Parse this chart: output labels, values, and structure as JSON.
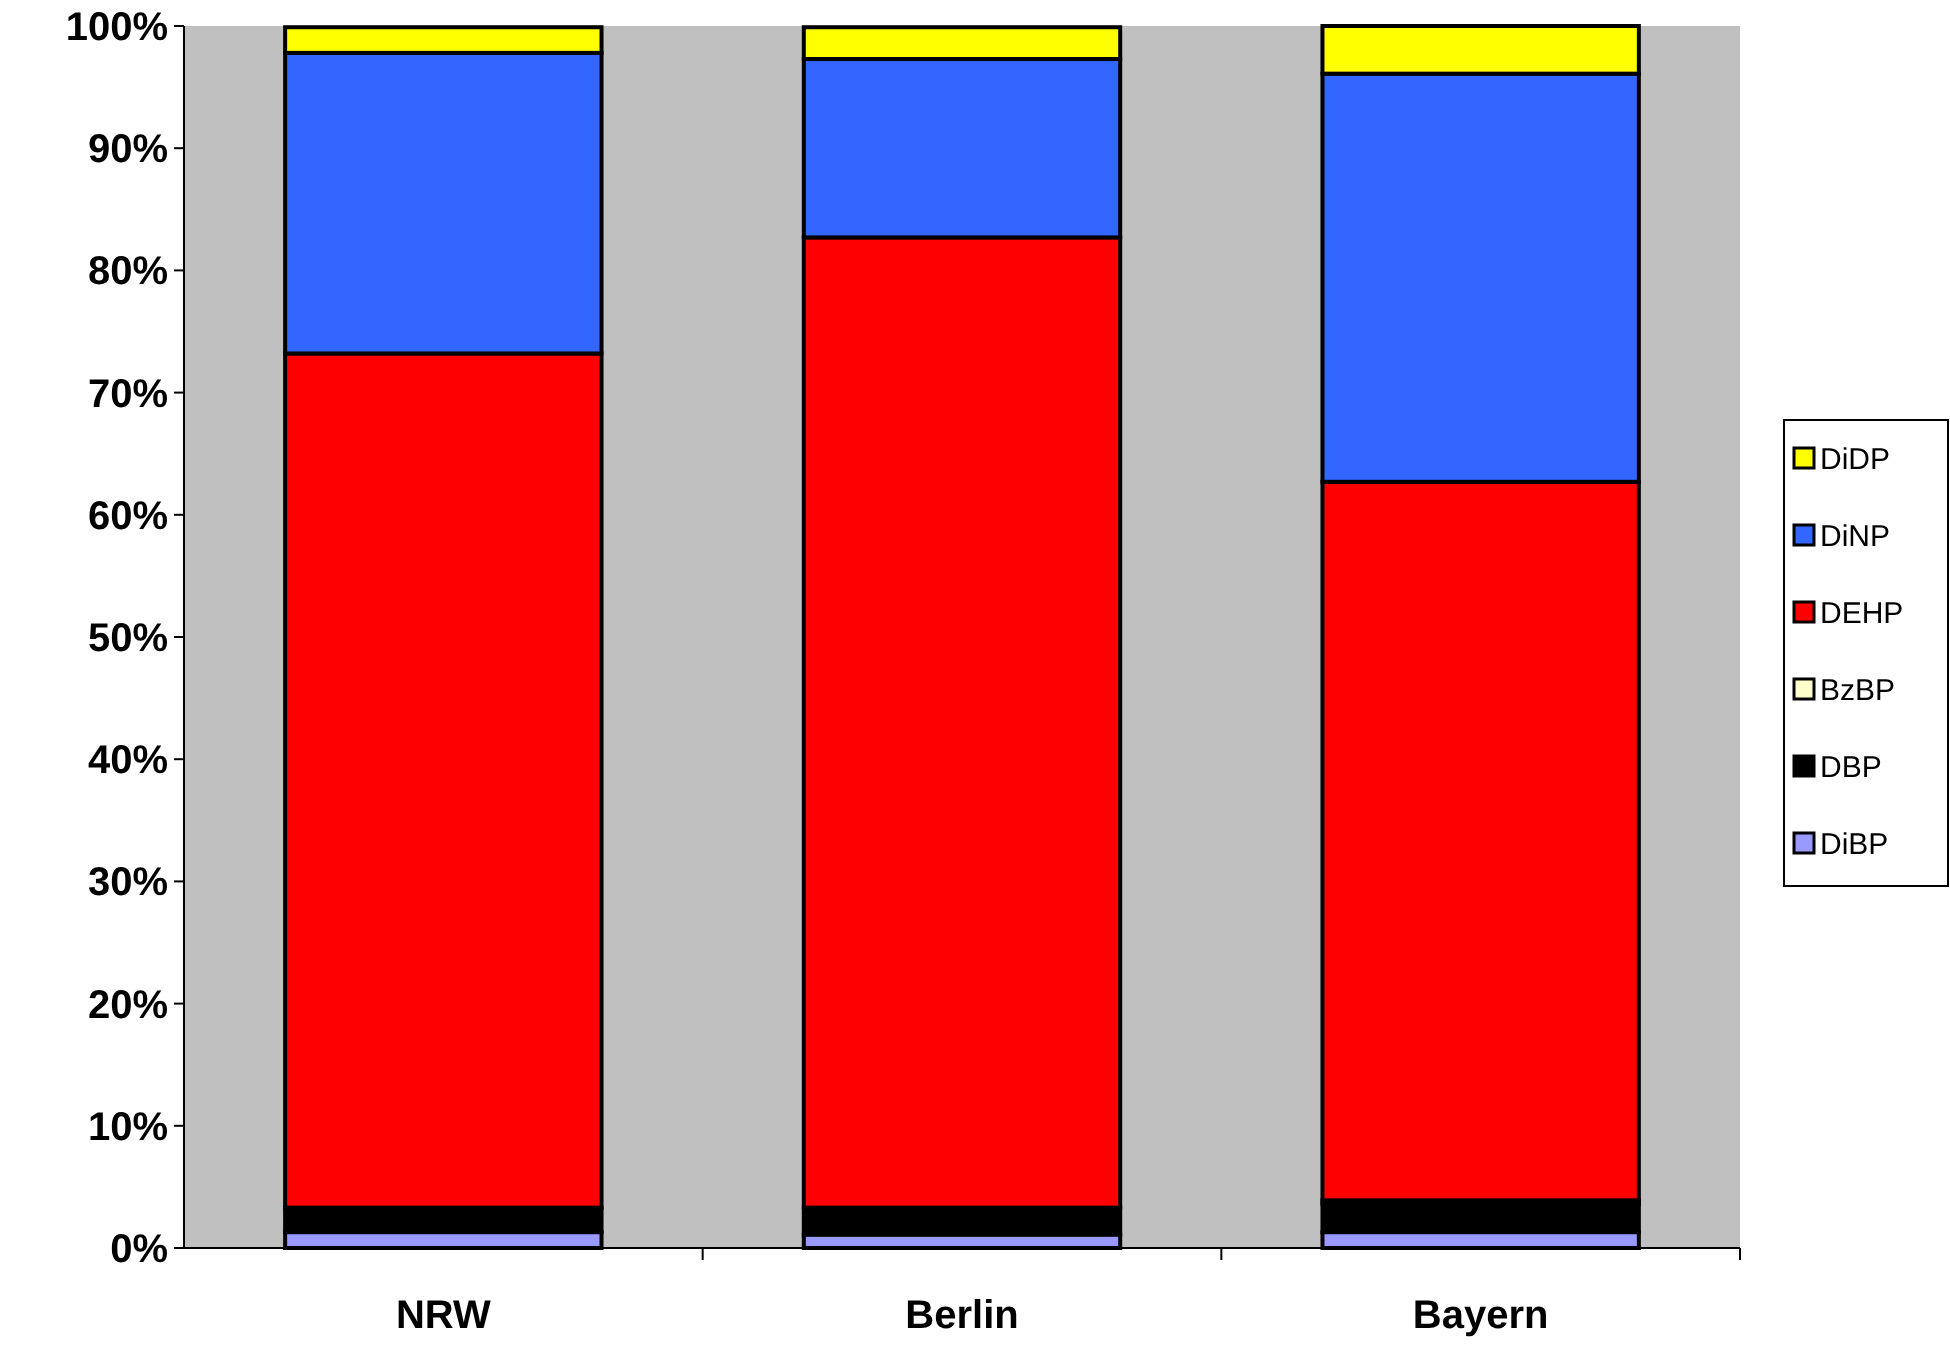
{
  "chart_data": {
    "type": "bar",
    "stacked": true,
    "categories": [
      "NRW",
      "Berlin",
      "Bayern"
    ],
    "series": [
      {
        "name": "DiBP",
        "color": "#9999ff",
        "values": [
          1.3,
          1.1,
          1.3
        ]
      },
      {
        "name": "DBP",
        "color": "#000000",
        "values": [
          2.0,
          2.2,
          2.3
        ]
      },
      {
        "name": "BzBP",
        "color": "#ffffcc",
        "values": [
          null,
          null,
          0.3
        ]
      },
      {
        "name": "DEHP",
        "color": "#ff0000",
        "values": [
          69.9,
          79.4,
          58.8
        ]
      },
      {
        "name": "DiNP",
        "color": "#3366ff",
        "values": [
          24.6,
          14.6,
          33.4
        ]
      },
      {
        "name": "DiDP",
        "color": "#ffff00",
        "values": [
          2.1,
          2.6,
          3.9
        ]
      }
    ],
    "ylim": [
      0,
      100
    ],
    "yticks": [
      {
        "value": 0,
        "label": "0%"
      },
      {
        "value": 10,
        "label": "10%"
      },
      {
        "value": 20,
        "label": "20%"
      },
      {
        "value": 30,
        "label": "30%"
      },
      {
        "value": 40,
        "label": "40%"
      },
      {
        "value": 50,
        "label": "50%"
      },
      {
        "value": 60,
        "label": "60%"
      },
      {
        "value": 70,
        "label": "70%"
      },
      {
        "value": 80,
        "label": "80%"
      },
      {
        "value": 90,
        "label": "90%"
      },
      {
        "value": 100,
        "label": "100%"
      }
    ],
    "grid": false,
    "legend": "right"
  }
}
